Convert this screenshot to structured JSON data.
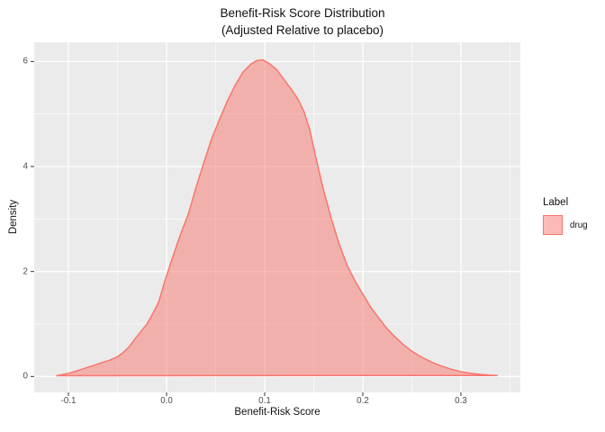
{
  "figure": {
    "title_line1": "Benefit-Risk Score Distribution",
    "title_line2": "(Adjusted Relative to placebo)"
  },
  "chart_data": {
    "type": "area",
    "subtype": "kernel-density",
    "title": "Benefit-Risk Score Distribution (Adjusted Relative to placebo)",
    "xlabel": "Benefit-Risk Score",
    "ylabel": "Density",
    "xlim": [
      -0.1349,
      0.3606
    ],
    "ylim": [
      -0.303,
      6.366
    ],
    "x_ticks": [
      -0.1,
      0.0,
      0.1,
      0.2,
      0.3
    ],
    "x_tick_labels": [
      "-0.1",
      "0.0",
      "0.1",
      "0.2",
      "0.3"
    ],
    "x_minor_ticks": [
      -0.05,
      0.05,
      0.15,
      0.25,
      0.35
    ],
    "y_ticks": [
      0,
      2,
      4,
      6
    ],
    "y_tick_labels": [
      "0",
      "2",
      "4",
      "6"
    ],
    "y_minor_ticks": [
      1,
      3,
      5
    ],
    "grid": true,
    "legend": {
      "title": "Label",
      "position": "right",
      "entries": [
        {
          "label": "drug",
          "fill": "#F8766D",
          "fill_opacity": 0.5,
          "stroke": "#F8766D"
        }
      ]
    },
    "colors": {
      "panel_bg": "#EBEBEB",
      "grid": "#FFFFFF",
      "tick_mark": "#333333",
      "tick_text": "#4D4D4D",
      "text": "#111111",
      "density_fill": "#F8766D",
      "density_stroke": "#F8766D"
    },
    "series": [
      {
        "name": "drug",
        "points": [
          [
            -0.112,
            0.015
          ],
          [
            -0.105,
            0.04
          ],
          [
            -0.098,
            0.07
          ],
          [
            -0.09,
            0.115
          ],
          [
            -0.082,
            0.165
          ],
          [
            -0.074,
            0.215
          ],
          [
            -0.066,
            0.265
          ],
          [
            -0.058,
            0.31
          ],
          [
            -0.05,
            0.375
          ],
          [
            -0.044,
            0.46
          ],
          [
            -0.038,
            0.57
          ],
          [
            -0.032,
            0.72
          ],
          [
            -0.026,
            0.86
          ],
          [
            -0.02,
            1.0
          ],
          [
            -0.014,
            1.2
          ],
          [
            -0.008,
            1.42
          ],
          [
            -0.002,
            1.8
          ],
          [
            0.004,
            2.15
          ],
          [
            0.01,
            2.48
          ],
          [
            0.016,
            2.8
          ],
          [
            0.022,
            3.08
          ],
          [
            0.03,
            3.6
          ],
          [
            0.038,
            4.07
          ],
          [
            0.046,
            4.53
          ],
          [
            0.054,
            4.9
          ],
          [
            0.062,
            5.25
          ],
          [
            0.07,
            5.55
          ],
          [
            0.078,
            5.8
          ],
          [
            0.086,
            5.95
          ],
          [
            0.092,
            6.02
          ],
          [
            0.098,
            6.03
          ],
          [
            0.104,
            5.97
          ],
          [
            0.112,
            5.85
          ],
          [
            0.12,
            5.65
          ],
          [
            0.128,
            5.45
          ],
          [
            0.134,
            5.28
          ],
          [
            0.14,
            5.05
          ],
          [
            0.146,
            4.7
          ],
          [
            0.153,
            4.1
          ],
          [
            0.16,
            3.55
          ],
          [
            0.168,
            3.0
          ],
          [
            0.176,
            2.52
          ],
          [
            0.184,
            2.12
          ],
          [
            0.192,
            1.82
          ],
          [
            0.2,
            1.57
          ],
          [
            0.208,
            1.32
          ],
          [
            0.216,
            1.12
          ],
          [
            0.224,
            0.93
          ],
          [
            0.232,
            0.77
          ],
          [
            0.24,
            0.63
          ],
          [
            0.248,
            0.51
          ],
          [
            0.256,
            0.41
          ],
          [
            0.264,
            0.33
          ],
          [
            0.272,
            0.26
          ],
          [
            0.28,
            0.2
          ],
          [
            0.29,
            0.14
          ],
          [
            0.3,
            0.09
          ],
          [
            0.31,
            0.06
          ],
          [
            0.32,
            0.04
          ],
          [
            0.33,
            0.025
          ],
          [
            0.337,
            0.02
          ]
        ]
      }
    ]
  }
}
